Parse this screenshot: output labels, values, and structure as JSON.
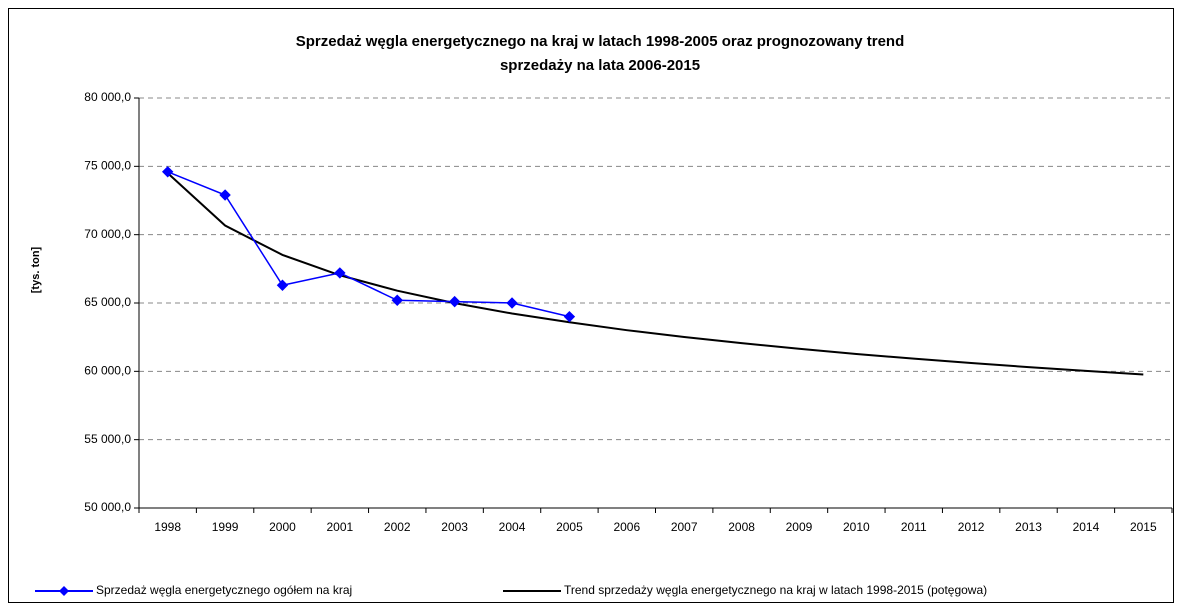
{
  "chart_data": {
    "type": "line",
    "title": [
      "Sprzedaż węgla energetycznego na kraj w latach 1998-2005 oraz prognozowany trend",
      "sprzedaży na lata 2006-2015"
    ],
    "y_label": "[tys. ton]",
    "categories": [
      "1998",
      "1999",
      "2000",
      "2001",
      "2002",
      "2003",
      "2004",
      "2005",
      "2006",
      "2007",
      "2008",
      "2009",
      "2010",
      "2011",
      "2012",
      "2013",
      "2014",
      "2015"
    ],
    "series": [
      {
        "name": "Sprzedaż węgla energetycznego ogółem na kraj",
        "color": "#0000ff",
        "marker": "diamond",
        "values": [
          74600,
          72900,
          66300,
          67200,
          65200,
          65100,
          65000,
          64000,
          null,
          null,
          null,
          null,
          null,
          null,
          null,
          null,
          null,
          null
        ]
      },
      {
        "name": "Trend sprzedaży węgla energetycznego na kraj w latach 1998-2015 (potęgowa)",
        "color": "#000000",
        "values": [
          74500,
          70670,
          68520,
          67030,
          65900,
          64990,
          64230,
          63590,
          63010,
          62510,
          62060,
          61650,
          61270,
          60930,
          60610,
          60310,
          60030,
          59770
        ]
      }
    ],
    "ylim": [
      50000,
      80000
    ],
    "yticks": [
      {
        "value": 50000,
        "label": "50 000,0"
      },
      {
        "value": 55000,
        "label": "55 000,0"
      },
      {
        "value": 60000,
        "label": "60 000,0"
      },
      {
        "value": 65000,
        "label": "65 000,0"
      },
      {
        "value": 70000,
        "label": "70 000,0"
      },
      {
        "value": 75000,
        "label": "75 000,0"
      },
      {
        "value": 80000,
        "label": "80 000,0"
      }
    ],
    "grid": true,
    "legend": "bottom"
  }
}
